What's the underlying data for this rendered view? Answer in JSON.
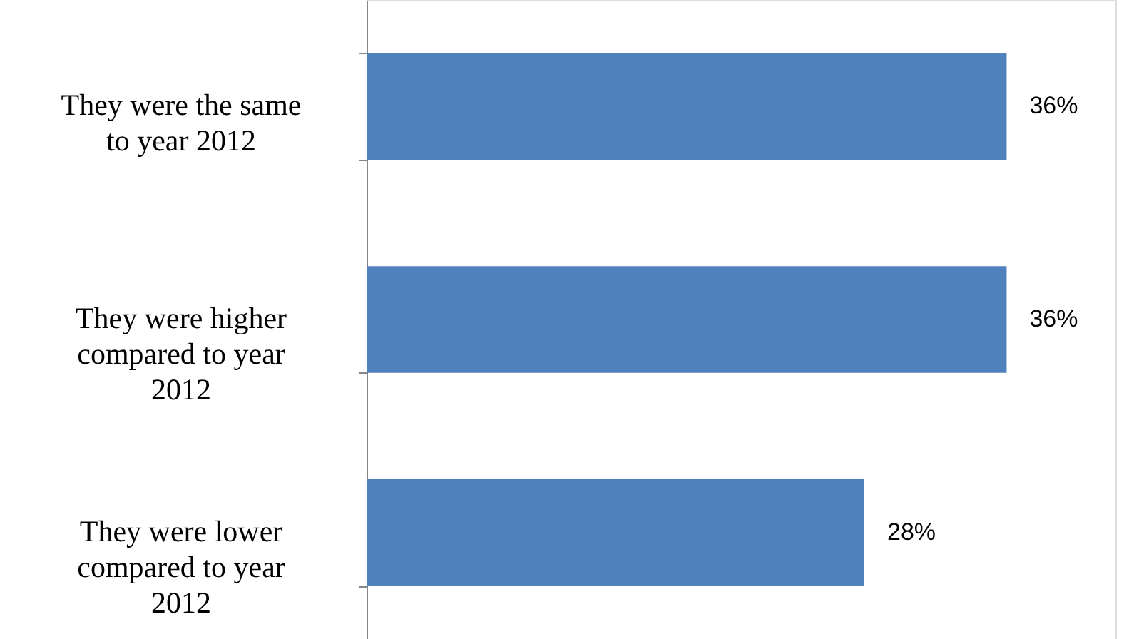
{
  "chart_data": {
    "type": "bar",
    "orientation": "horizontal",
    "categories": [
      "They were the same to year 2012",
      "They were higher compared to year 2012",
      "They were lower compared to year 2012"
    ],
    "values": [
      36,
      36,
      28
    ],
    "color": "#4f81bd",
    "value_labels": [
      "36%",
      "36%",
      "28%"
    ]
  }
}
